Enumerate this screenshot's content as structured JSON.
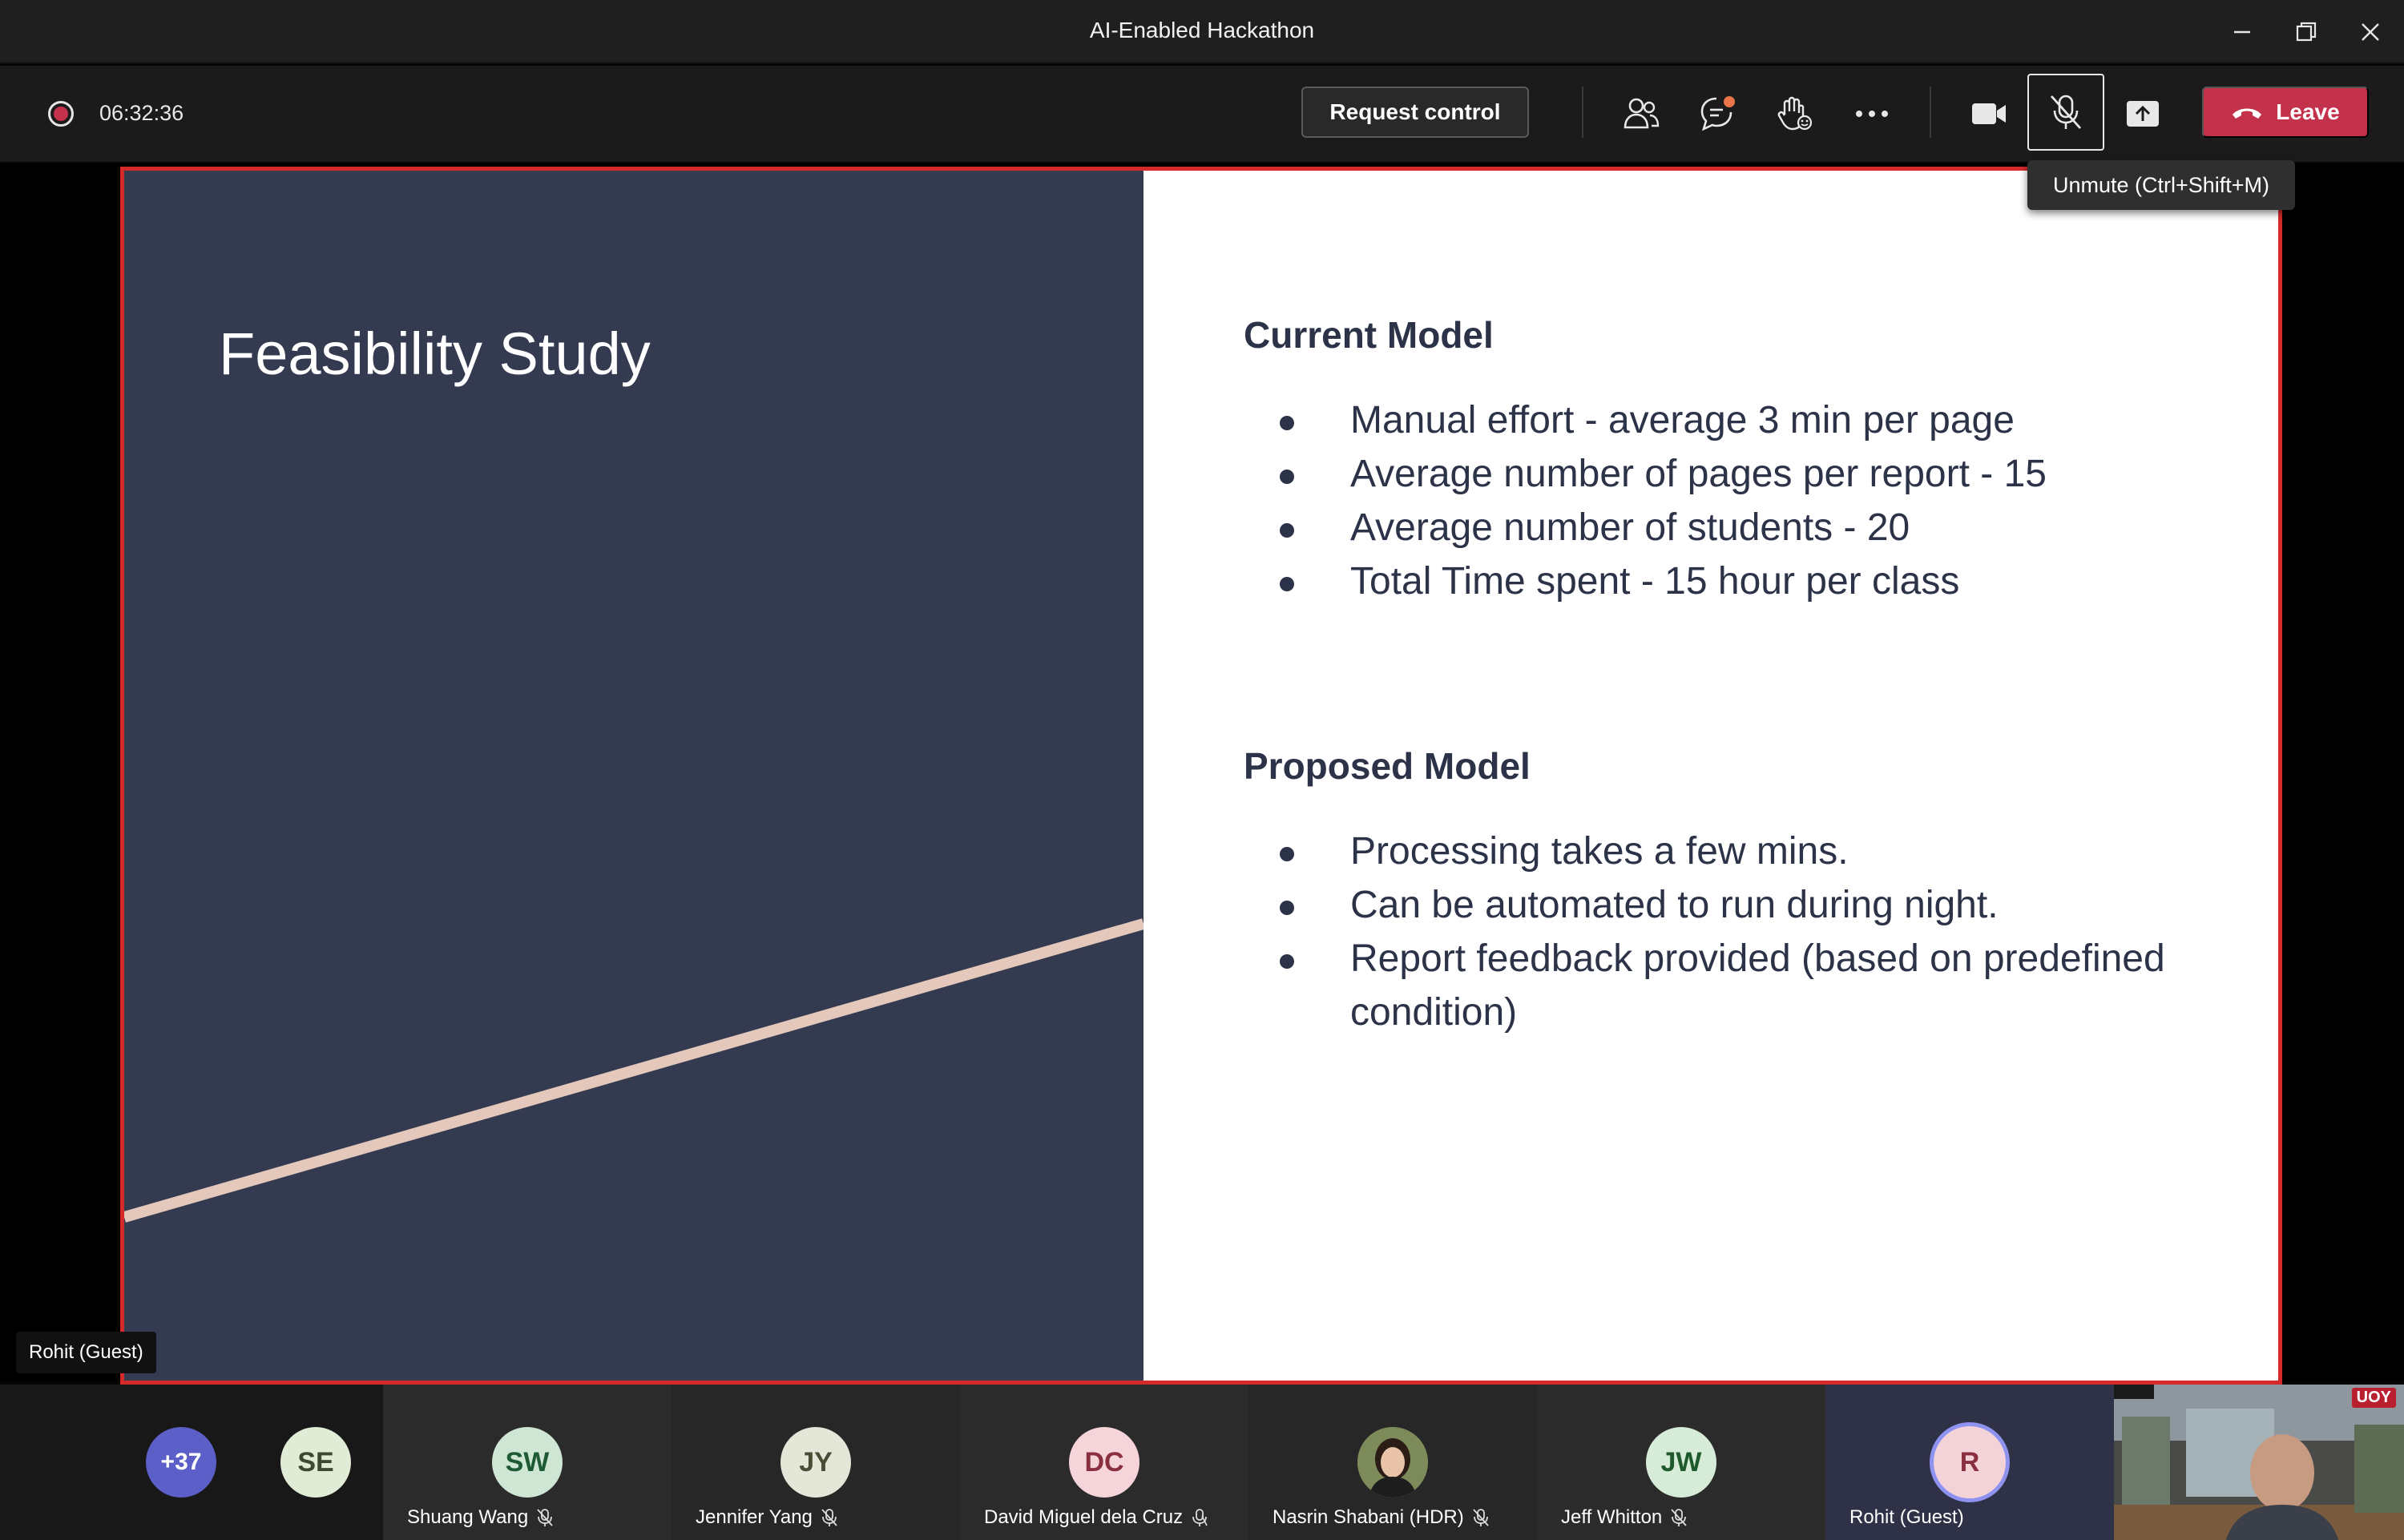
{
  "window": {
    "title": "AI-Enabled Hackathon",
    "controls": [
      "minimize-icon",
      "restore-icon",
      "close-icon"
    ]
  },
  "toolbar": {
    "timer": "06:32:36",
    "request_control_label": "Request control",
    "icons": [
      "people-icon",
      "chat-icon",
      "raise-hand-icon",
      "more-icon",
      "camera-icon",
      "mic-off-icon",
      "share-icon"
    ],
    "leave_label": "Leave",
    "tooltip": "Unmute (Ctrl+Shift+M)",
    "accent_color": "#c4314b",
    "chat_badge_color": "#e97548"
  },
  "slide": {
    "title": "Feasibility Study",
    "current_model": {
      "heading": "Current Model",
      "bullets": [
        "Manual effort - average 3 min per page",
        "Average number of pages per report - 15",
        "Average number of students - 20",
        "Total Time spent - 15 hour per class"
      ]
    },
    "proposed_model": {
      "heading": "Proposed Model",
      "bullets": [
        "Processing takes a few mins.",
        "Can be automated to run during night.",
        "Report feedback provided (based on predefined condition)"
      ]
    },
    "border_color": "#d42a2a",
    "left_panel_color": "#343a4f",
    "accent_line_color": "#e3c8bb"
  },
  "presenter": {
    "name": "Rohit (Guest)"
  },
  "participants": {
    "overflow_count": "+37",
    "list": [
      {
        "initials": "SE",
        "name": "",
        "muted": false
      },
      {
        "initials": "SW",
        "name": "Shuang Wang",
        "muted": true
      },
      {
        "initials": "JY",
        "name": "Jennifer Yang",
        "muted": true
      },
      {
        "initials": "DC",
        "name": "David Miguel dela Cruz",
        "muted": false
      },
      {
        "initials": "",
        "name": "Nasrin Shabani (HDR)",
        "muted": true
      },
      {
        "initials": "JW",
        "name": "Jeff Whitton",
        "muted": true
      },
      {
        "initials": "R",
        "name": "Rohit (Guest)",
        "muted": false
      }
    ],
    "self_view_badge": "UOY"
  }
}
